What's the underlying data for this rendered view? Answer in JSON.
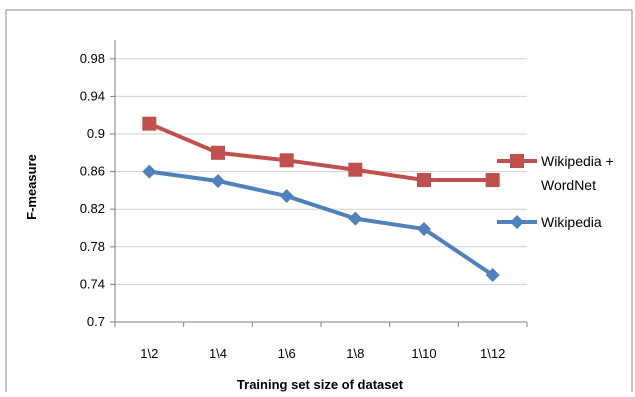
{
  "chart_data": {
    "type": "line",
    "categories": [
      "1\\2",
      "1\\4",
      "1\\6",
      "1\\8",
      "1\\10",
      "1\\12"
    ],
    "series": [
      {
        "name": "Wikipedia + WordNet",
        "legend_lines": [
          "Wikipedia +",
          "WordNet"
        ],
        "color": "#C0504D",
        "marker": "square",
        "values": [
          0.911,
          0.88,
          0.872,
          0.862,
          0.851,
          0.851
        ]
      },
      {
        "name": "Wikipedia",
        "legend_lines": [
          "Wikipedia"
        ],
        "color": "#4F81BD",
        "marker": "diamond",
        "values": [
          0.86,
          0.85,
          0.834,
          0.81,
          0.799,
          0.75
        ]
      }
    ],
    "xlabel": "Training set size of dataset",
    "ylabel": "F-measure",
    "ylim": [
      0.7,
      1.0
    ],
    "yticks": [
      "0.7",
      "0.74",
      "0.78",
      "0.82",
      "0.86",
      "0.9",
      "0.94",
      "0.98"
    ],
    "grid": "horizontal",
    "legend": "right"
  }
}
